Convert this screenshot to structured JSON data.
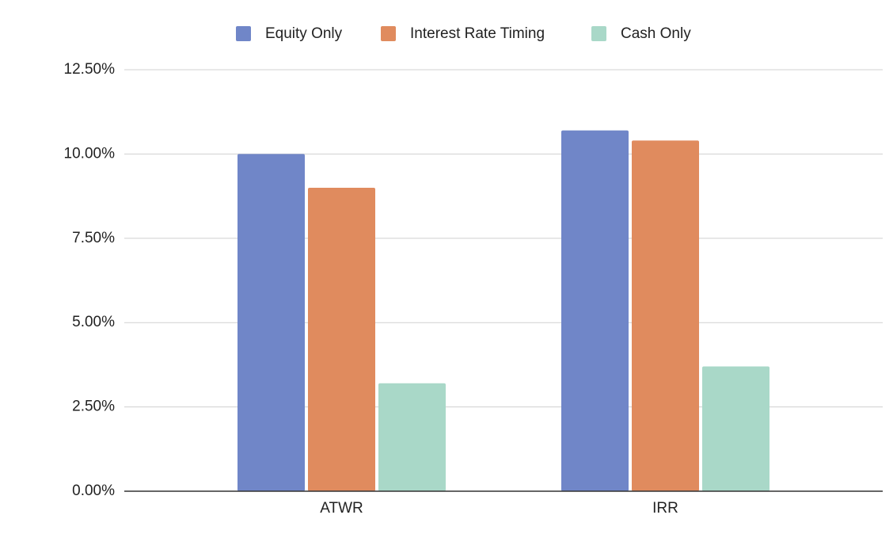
{
  "chart_data": {
    "type": "bar",
    "categories": [
      "ATWR",
      "IRR"
    ],
    "series": [
      {
        "name": "Equity Only",
        "color": "#7086c8",
        "values": [
          10.0,
          10.7
        ]
      },
      {
        "name": "Interest Rate Timing",
        "color": "#e08b5e",
        "values": [
          9.0,
          10.4
        ]
      },
      {
        "name": "Cash Only",
        "color": "#a9d8c8",
        "values": [
          3.2,
          3.7
        ]
      }
    ],
    "ylim": [
      0,
      12.5
    ],
    "yticks": [
      {
        "value": 0,
        "label": "0.00%"
      },
      {
        "value": 2.5,
        "label": "2.50%"
      },
      {
        "value": 5,
        "label": "5.00%"
      },
      {
        "value": 7.5,
        "label": "7.50%"
      },
      {
        "value": 10,
        "label": "10.00%"
      },
      {
        "value": 12.5,
        "label": "12.50%"
      }
    ],
    "grid": true,
    "legend": "top"
  }
}
